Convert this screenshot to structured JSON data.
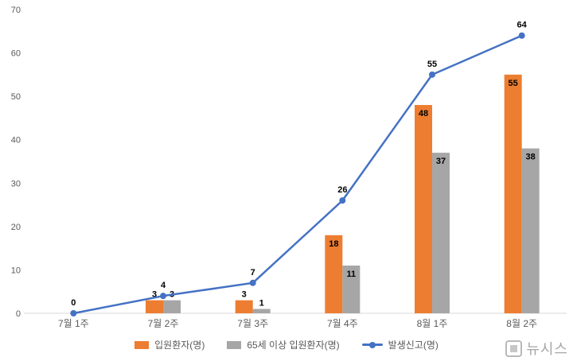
{
  "chart_data": {
    "type": "combo",
    "categories": [
      "7월 1주",
      "7월 2주",
      "7월 3주",
      "7월 4주",
      "8월 1주",
      "8월 2주"
    ],
    "series": [
      {
        "name": "입원환자(명)",
        "type": "bar",
        "color": "#ED7D31",
        "values": [
          0,
          3,
          3,
          18,
          48,
          55
        ]
      },
      {
        "name": "65세 이상 입원환자(명)",
        "type": "bar",
        "color": "#A6A6A6",
        "values": [
          0,
          3,
          1,
          11,
          37,
          38
        ]
      },
      {
        "name": "발생신고(명)",
        "type": "line",
        "color": "#4472C4",
        "values": [
          0,
          4,
          7,
          26,
          55,
          64
        ]
      }
    ],
    "ylim": [
      0,
      70
    ],
    "ytick_step": 10,
    "grid": false,
    "legend_position": "bottom",
    "data_labels": true,
    "axis_color": "#D9D9D9",
    "tick_label_color": "#595959",
    "data_label_color": "#000000"
  },
  "watermark": {
    "text": "뉴시스"
  }
}
